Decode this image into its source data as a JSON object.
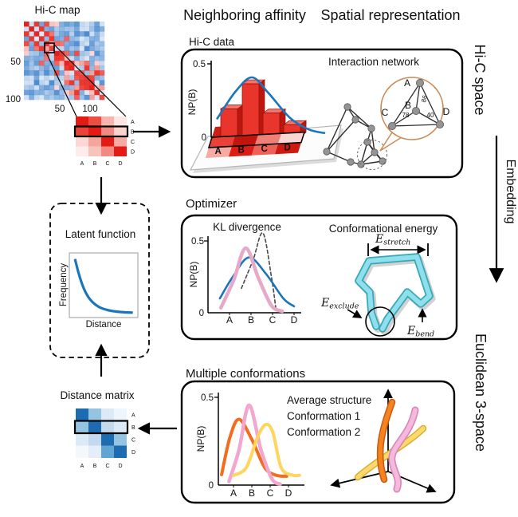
{
  "headers": {
    "neighboring_affinity": "Neighboring affinity",
    "spatial_representation": "Spatial representation"
  },
  "side_labels": {
    "hic_space": "Hi-C space",
    "embedding": "Embedding",
    "euclidean": "Euclidean 3-space"
  },
  "hic_map": {
    "title": "Hi-C map",
    "y_tick_50": "50",
    "y_tick_100": "100",
    "x_tick_50": "50",
    "x_tick_100": "100"
  },
  "red_matrix": {
    "row_labels": [
      "A",
      "B",
      "C",
      "D"
    ],
    "col_labels": [
      "A",
      "B",
      "C",
      "D"
    ],
    "highlighted_row": "B",
    "cells": [
      [
        "#e41b15",
        "#ee4d42",
        "#f9b4ad",
        "#fce7e4"
      ],
      [
        "#ec423a",
        "#e41b15",
        "#f18a81",
        "#fbd2cc"
      ],
      [
        "#fbd8d3",
        "#f6a59d",
        "#e41b15",
        "#f6aaa2"
      ],
      [
        "#fdece9",
        "#f9c3bd",
        "#f18a81",
        "#e41b15"
      ]
    ]
  },
  "distance_matrix": {
    "title": "Distance matrix",
    "row_labels": [
      "A",
      "B",
      "C",
      "D"
    ],
    "col_labels": [
      "A",
      "B",
      "C",
      "D"
    ],
    "highlighted_row": "B",
    "cells": [
      [
        "#1d6cb1",
        "#94c4df",
        "#dce9f6",
        "#eef5fc"
      ],
      [
        "#94c4df",
        "#1d6cb1",
        "#c3d9ee",
        "#dce9f6"
      ],
      [
        "#dce9f6",
        "#c3d9ee",
        "#1d6cb1",
        "#94c4df"
      ],
      [
        "#f3f8fd",
        "#e4eef8",
        "#62a4d2",
        "#1d6cb1"
      ]
    ]
  },
  "hic_data_panel": {
    "label": "Hi-C data",
    "bar_chart": {
      "type": "bar",
      "ylabel": "NP(B)",
      "y_tick_top": "0.5",
      "y_tick_bottom": "0",
      "ylim": [
        0,
        0.5
      ],
      "categories": [
        "A",
        "B",
        "C",
        "D"
      ],
      "values": [
        0.22,
        0.38,
        0.17,
        0.08
      ],
      "bar_color": "#e9352c",
      "fit_curve_color": "#1b75bb",
      "fit_curve": [
        [
          0,
          0.15
        ],
        [
          0.7,
          0.34
        ],
        [
          1.3,
          0.435
        ],
        [
          1.9,
          0.33
        ],
        [
          2.7,
          0.16
        ],
        [
          3.4,
          0.08
        ],
        [
          4.0,
          0.055
        ]
      ],
      "strip_colors": [
        [
          "#cc1f16",
          "#e73b31",
          "#f4948c",
          "#f9cfc9"
        ],
        [
          "#ea4239",
          "#c3140d",
          "#ef8078",
          "#f9d6d1"
        ],
        [
          "#f5aaa3",
          "#dd1d14",
          "#ee6158",
          "#cf1810"
        ]
      ]
    },
    "network": {
      "title": "Interaction network",
      "node_labels": [
        "A",
        "B",
        "C",
        "D"
      ],
      "edges": [
        {
          "from": "A",
          "to": "B",
          "weight": "86"
        },
        {
          "from": "C",
          "to": "B",
          "weight": "78"
        },
        {
          "from": "B",
          "to": "D",
          "weight": "40"
        }
      ],
      "circle_color": "#c98a55"
    }
  },
  "optimizer_panel": {
    "label": "Optimizer",
    "kl_chart": {
      "type": "line",
      "title": "KL divergence",
      "ylabel": "NP(B)",
      "y_tick_top": "0.5",
      "y_tick_bottom": "0",
      "ylim": [
        0,
        0.5
      ],
      "categories": [
        "A",
        "B",
        "C",
        "D"
      ],
      "series": [
        {
          "style": "dashed",
          "color": "#4a4a4a",
          "width": 1.6,
          "points": [
            [
              1.55,
              0.17
            ],
            [
              2.1,
              0.37
            ],
            [
              2.55,
              0.555
            ],
            [
              2.95,
              0.25
            ],
            [
              3.15,
              0.03
            ]
          ]
        },
        {
          "style": "solid",
          "color": "#1b75bb",
          "width": 2.6,
          "points": [
            [
              0.55,
              0.1
            ],
            [
              1.15,
              0.25
            ],
            [
              1.9,
              0.385
            ],
            [
              2.7,
              0.27
            ],
            [
              3.5,
              0.1
            ],
            [
              4.0,
              0.045
            ]
          ]
        },
        {
          "style": "solid",
          "color": "#e7a9c9",
          "width": 4.5,
          "points": [
            [
              0.6,
              0.035
            ],
            [
              1.2,
              0.23
            ],
            [
              1.75,
              0.45
            ],
            [
              2.35,
              0.24
            ],
            [
              2.95,
              0.05
            ],
            [
              3.45,
              0.01
            ]
          ]
        }
      ]
    },
    "energy": {
      "title": "Conformational energy",
      "terms": {
        "stretch": {
          "base": "E",
          "sub": "stretch"
        },
        "exclude": {
          "base": "E",
          "sub": "exclude"
        },
        "bend": {
          "base": "E",
          "sub": "bend"
        }
      },
      "chain_color": "#8ee0ec"
    }
  },
  "conformations_panel": {
    "label": "Multiple conformations",
    "chart": {
      "type": "line",
      "ylabel": "NP(B)",
      "y_tick_top": "0.5",
      "y_tick_bottom": "0",
      "ylim": [
        0,
        0.5
      ],
      "categories": [
        "A",
        "B",
        "C",
        "D"
      ],
      "legend_position": "top-right",
      "series": [
        {
          "name": "Average structure",
          "color": "#f2a7cf",
          "width": 4.5,
          "points": [
            [
              0.75,
              0.02
            ],
            [
              1.3,
              0.2
            ],
            [
              1.85,
              0.455
            ],
            [
              2.5,
              0.2
            ],
            [
              3.1,
              0.035
            ],
            [
              3.55,
              0.005
            ]
          ]
        },
        {
          "name": "Conformation 1",
          "color": "#f26d21",
          "width": 4,
          "points": [
            [
              0.35,
              0.06
            ],
            [
              0.8,
              0.27
            ],
            [
              1.3,
              0.375
            ],
            [
              2.0,
              0.26
            ],
            [
              2.7,
              0.1
            ],
            [
              3.3,
              0.057
            ],
            [
              3.9,
              0.05
            ]
          ]
        },
        {
          "name": "Conformation 2",
          "color": "#ffd45f",
          "width": 4,
          "points": [
            [
              1.0,
              0.055
            ],
            [
              1.7,
              0.1
            ],
            [
              2.3,
              0.27
            ],
            [
              2.75,
              0.345
            ],
            [
              3.15,
              0.3
            ],
            [
              3.6,
              0.1
            ],
            [
              4.2,
              0.057
            ],
            [
              4.6,
              0.056
            ]
          ]
        }
      ]
    }
  },
  "latent_panel": {
    "title": "Latent function",
    "xlabel": "Distance",
    "ylabel": "Frequency",
    "curve_color": "#1b75bb",
    "curve": [
      [
        0.04,
        0.95
      ],
      [
        0.1,
        0.7
      ],
      [
        0.18,
        0.45
      ],
      [
        0.28,
        0.26
      ],
      [
        0.42,
        0.13
      ],
      [
        0.58,
        0.07
      ],
      [
        0.78,
        0.04
      ],
      [
        0.97,
        0.03
      ]
    ]
  }
}
